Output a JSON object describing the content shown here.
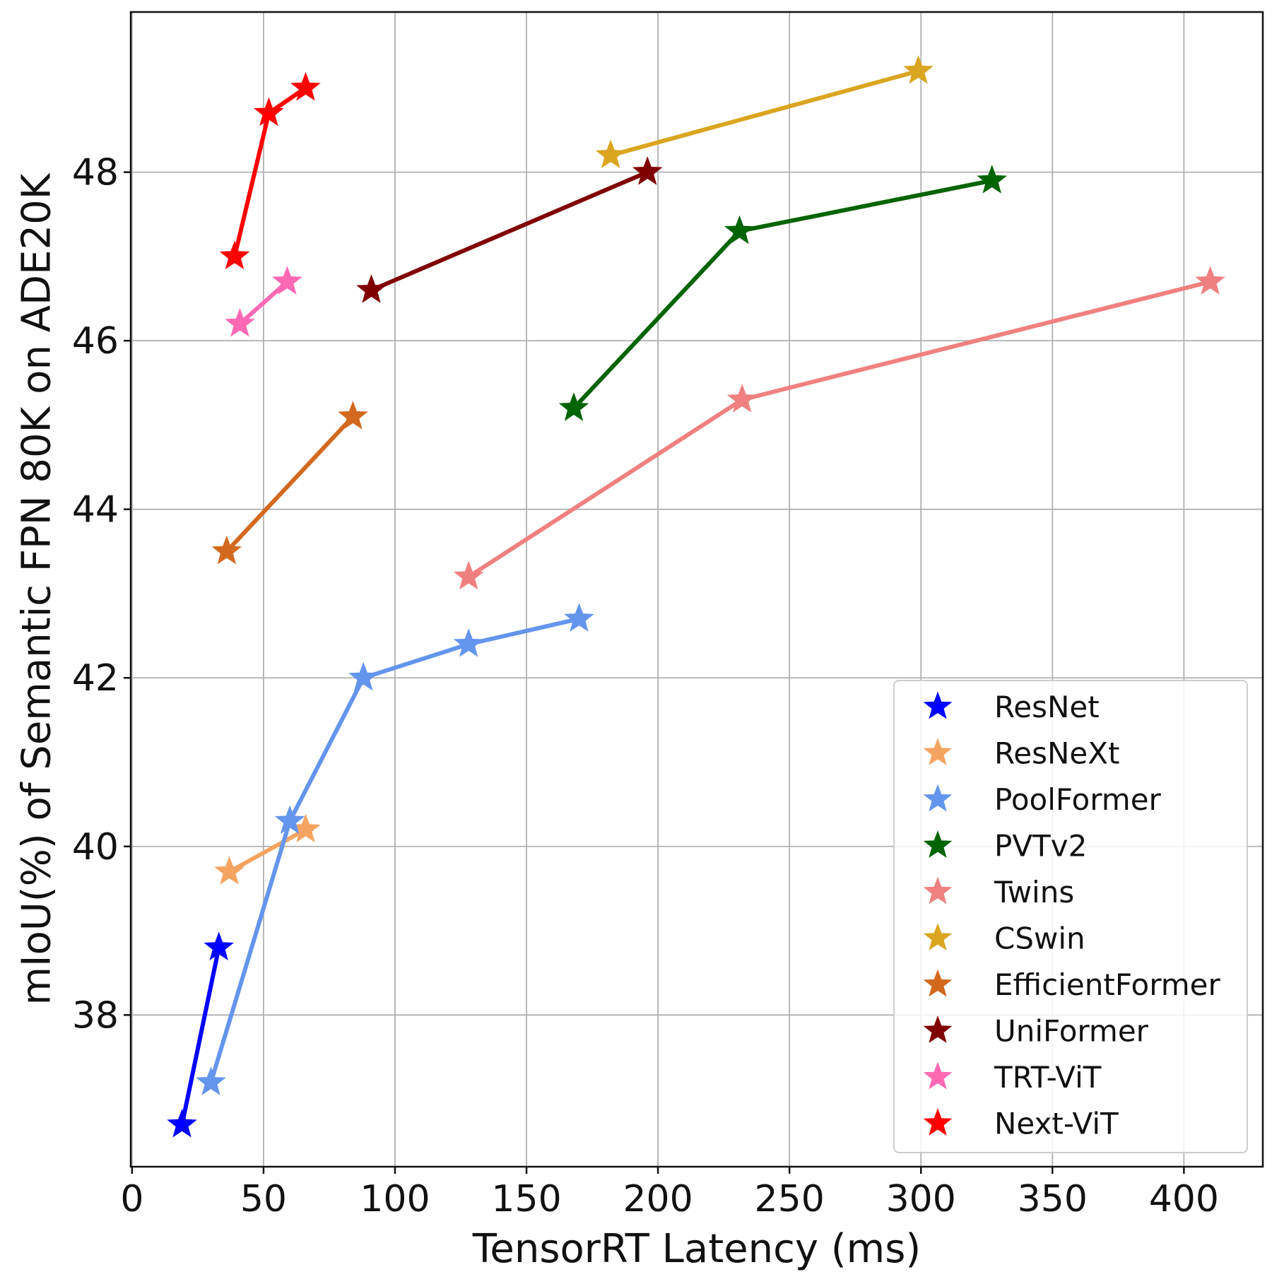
{
  "chart_data": {
    "type": "line",
    "title": "",
    "xlabel": "TensorRT Latency (ms)",
    "ylabel": "mIoU(%) of Semantic FPN 80K on ADE20K",
    "xlim": [
      -0.5,
      430
    ],
    "ylim": [
      36.2,
      49.9
    ],
    "xticks": [
      0,
      50,
      100,
      150,
      200,
      250,
      300,
      350,
      400
    ],
    "yticks": [
      38,
      40,
      42,
      44,
      46,
      48
    ],
    "grid": true,
    "legend_position": "bottom-right",
    "series": [
      {
        "name": "ResNet",
        "color": "#0000ff",
        "points": [
          [
            19,
            36.7
          ],
          [
            33,
            38.8
          ]
        ]
      },
      {
        "name": "ResNeXt",
        "color": "#f4a460",
        "points": [
          [
            37,
            39.7
          ],
          [
            66,
            40.2
          ]
        ]
      },
      {
        "name": "PoolFormer",
        "color": "#6495ed",
        "points": [
          [
            30,
            37.2
          ],
          [
            60,
            40.3
          ],
          [
            88,
            42.0
          ],
          [
            128,
            42.4
          ],
          [
            170,
            42.7
          ]
        ]
      },
      {
        "name": "PVTv2",
        "color": "#006400",
        "points": [
          [
            168,
            45.2
          ],
          [
            231,
            47.3
          ],
          [
            327,
            47.9
          ]
        ]
      },
      {
        "name": "Twins",
        "color": "#f08080",
        "points": [
          [
            128,
            43.2
          ],
          [
            232,
            45.3
          ],
          [
            410,
            46.7
          ]
        ]
      },
      {
        "name": "CSwin",
        "color": "#daa520",
        "points": [
          [
            182,
            48.2
          ],
          [
            299,
            49.2
          ]
        ]
      },
      {
        "name": "EfficientFormer",
        "color": "#d2691e",
        "points": [
          [
            36,
            43.5
          ],
          [
            84,
            45.1
          ]
        ]
      },
      {
        "name": "UniFormer",
        "color": "#800000",
        "points": [
          [
            91,
            46.6
          ],
          [
            196,
            48.0
          ]
        ]
      },
      {
        "name": "TRT-ViT",
        "color": "#ff69b4",
        "points": [
          [
            41,
            46.2
          ],
          [
            59,
            46.7
          ]
        ]
      },
      {
        "name": "Next-ViT",
        "color": "#ff0000",
        "points": [
          [
            39,
            47.0
          ],
          [
            52,
            48.7
          ],
          [
            66,
            49.0
          ]
        ]
      }
    ]
  }
}
